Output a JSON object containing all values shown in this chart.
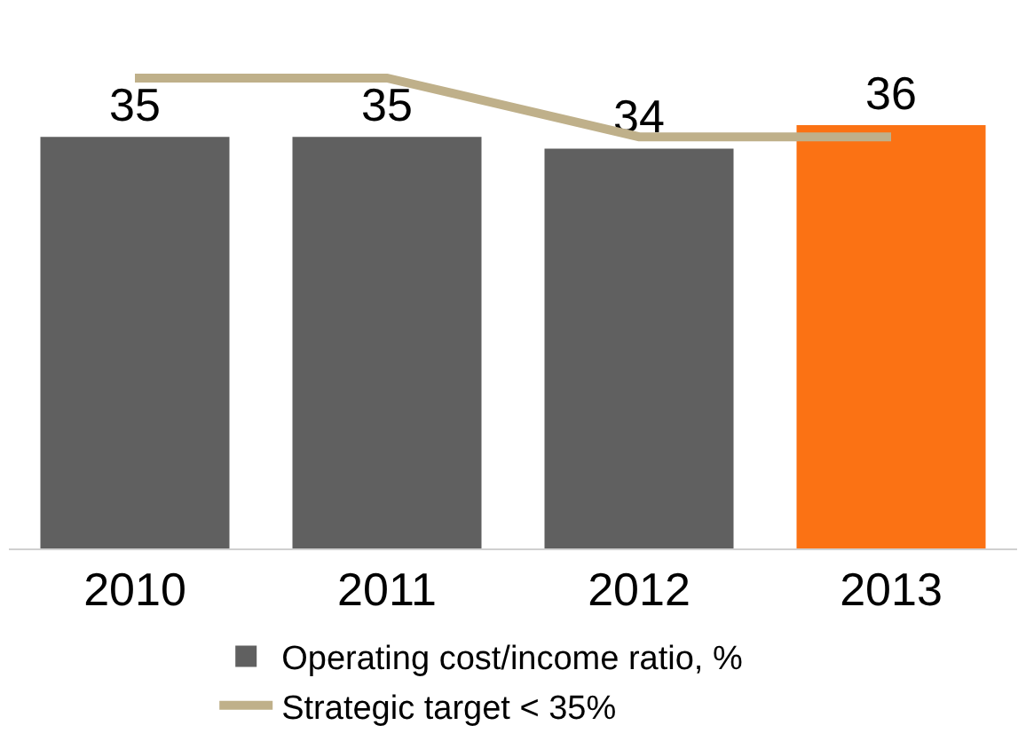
{
  "chart_data": {
    "type": "bar",
    "categories": [
      "2010",
      "2011",
      "2012",
      "2013"
    ],
    "series": [
      {
        "name": "Operating cost/income ratio, %",
        "color": "#606060",
        "colors": [
          "#606060",
          "#606060",
          "#606060",
          "#fb7214"
        ],
        "values": [
          35,
          35,
          34,
          36
        ],
        "value_labels": [
          "35",
          "35",
          "34",
          "36"
        ]
      },
      {
        "name": "Strategic target < 35%",
        "type": "line",
        "color": "#bfb08a",
        "values": [
          40,
          40,
          35,
          35
        ]
      }
    ],
    "tick_labels": "x",
    "legend": "bottom"
  }
}
